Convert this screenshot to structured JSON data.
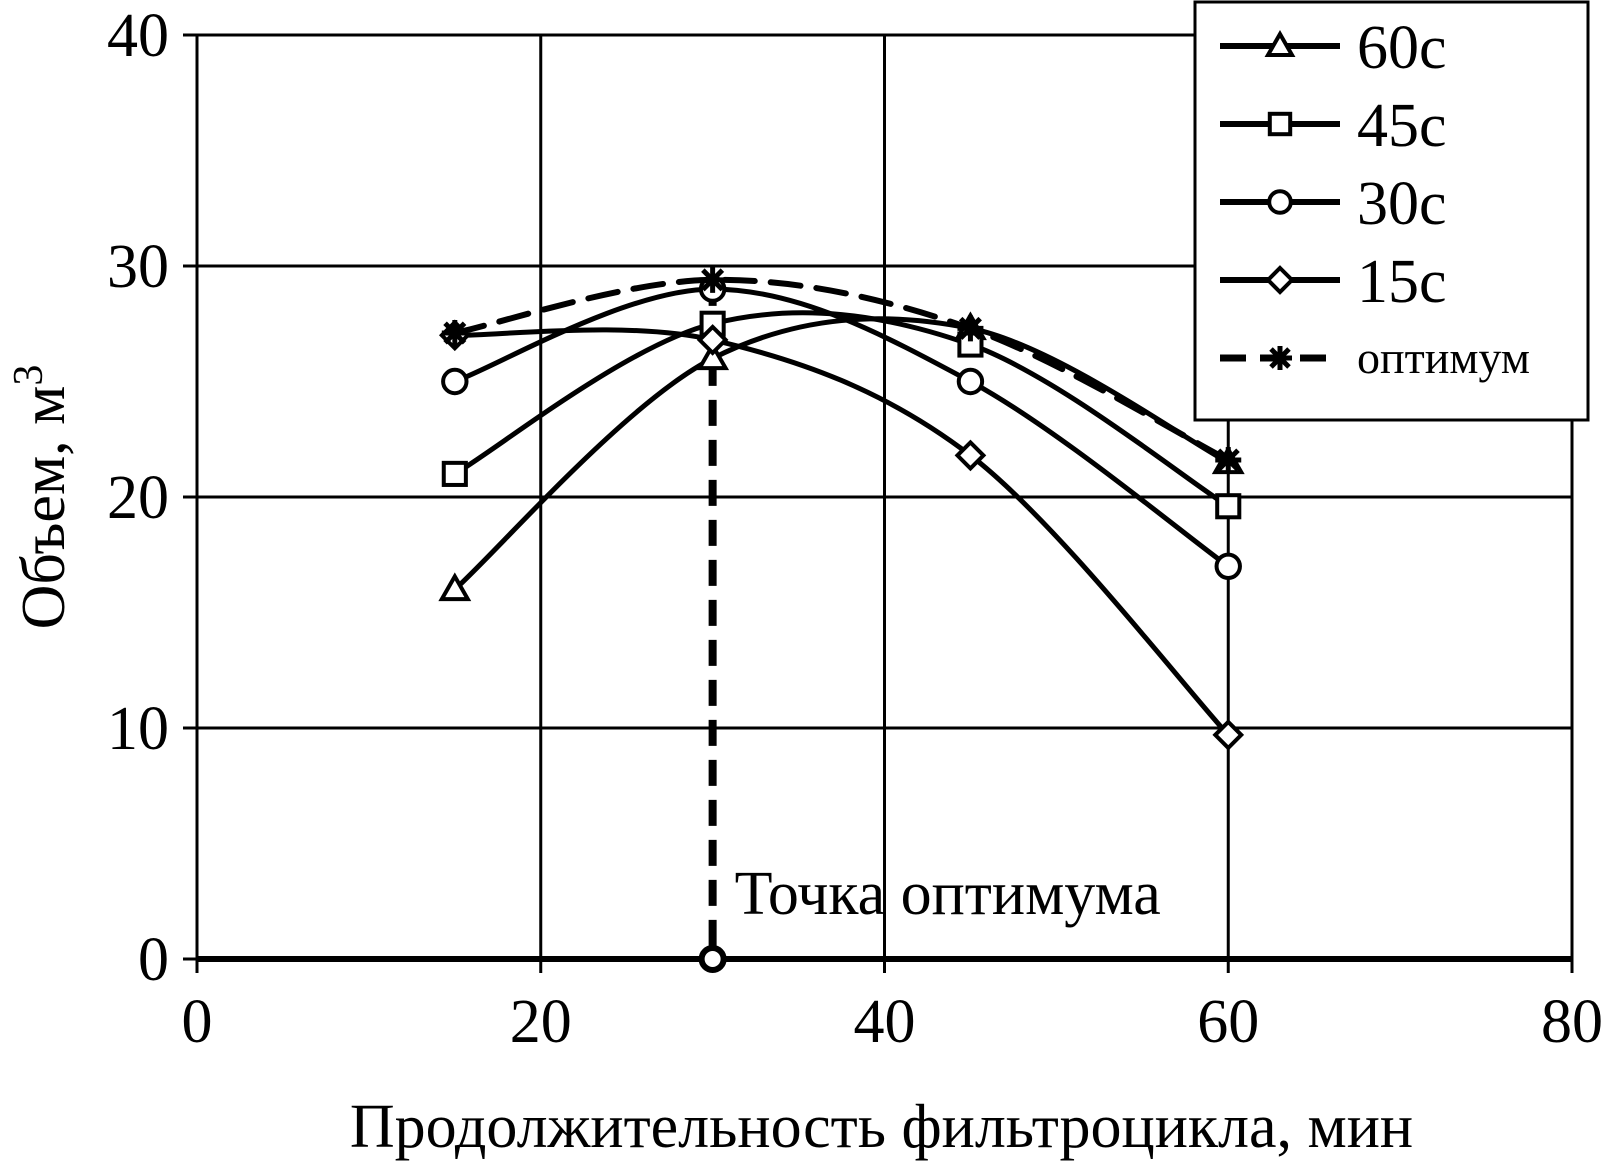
{
  "chart_data": {
    "type": "line",
    "xlabel": "Продолжительность фильтроцикла, мин",
    "ylabel_main": "Объем, м",
    "ylabel_sup": "3",
    "xlim": [
      0,
      80
    ],
    "ylim": [
      0,
      40
    ],
    "xticks": [
      "0",
      "20",
      "40",
      "60",
      "80"
    ],
    "yticks": [
      "0",
      "10",
      "20",
      "30",
      "40"
    ],
    "grid": true,
    "legend_position": "top-right",
    "series": [
      {
        "name": "60с",
        "marker": "triangle",
        "dashed": false,
        "x": [
          15,
          30,
          45,
          60
        ],
        "y": [
          16,
          26,
          27.3,
          21.5
        ]
      },
      {
        "name": "45с",
        "marker": "square",
        "dashed": false,
        "x": [
          15,
          30,
          45,
          60
        ],
        "y": [
          21,
          27.5,
          26.6,
          19.6
        ]
      },
      {
        "name": "30с",
        "marker": "circle",
        "dashed": false,
        "x": [
          15,
          30,
          45,
          60
        ],
        "y": [
          25,
          29,
          25,
          17
        ]
      },
      {
        "name": "15с",
        "marker": "diamond",
        "dashed": false,
        "x": [
          15,
          30,
          45,
          60
        ],
        "y": [
          27,
          26.8,
          21.8,
          9.7
        ]
      },
      {
        "name": "оптимум",
        "marker": "asterisk",
        "dashed": true,
        "x": [
          15,
          30,
          45,
          60
        ],
        "y": [
          27.1,
          29.4,
          27.3,
          21.6
        ]
      }
    ],
    "annotations": [
      {
        "text": "Точка оптимума",
        "x": 30,
        "y": 0
      }
    ],
    "colors": {
      "line": "#000000",
      "grid": "#000000",
      "background": "#ffffff"
    }
  }
}
